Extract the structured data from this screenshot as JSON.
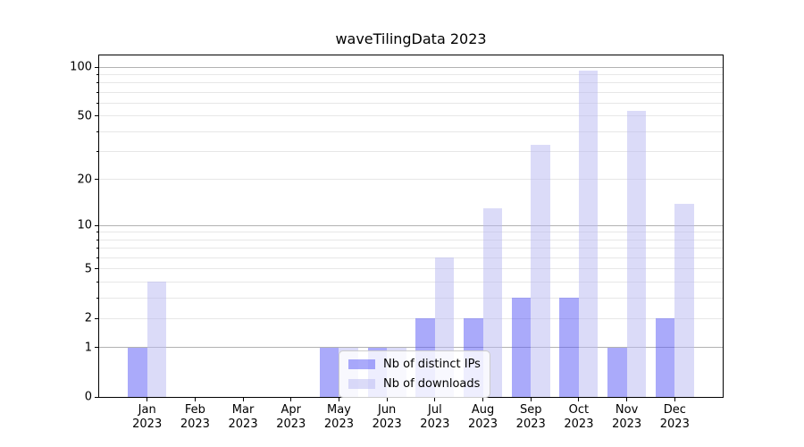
{
  "chart_data": {
    "type": "bar",
    "title": "waveTilingData 2023",
    "categories": [
      "Jan",
      "Feb",
      "Mar",
      "Apr",
      "May",
      "Jun",
      "Jul",
      "Aug",
      "Sep",
      "Oct",
      "Nov",
      "Dec"
    ],
    "category_year": "2023",
    "series": [
      {
        "name": "Nb of distinct IPs",
        "color": "rgba(85,85,245,0.5)",
        "values": [
          1,
          0,
          0,
          0,
          1,
          1,
          2,
          2,
          3,
          3,
          1,
          2
        ]
      },
      {
        "name": "Nb of downloads",
        "color": "rgba(183,183,241,0.5)",
        "values": [
          4,
          0,
          0,
          0,
          1,
          1,
          6,
          13,
          33,
          95,
          54,
          14
        ]
      }
    ],
    "yscale": "log1p",
    "ylim": [
      0,
      118
    ],
    "ytick_values": [
      0,
      1,
      2,
      5,
      10,
      20,
      50,
      100
    ],
    "ytick_labels": [
      "0",
      "1",
      "2",
      "5",
      "10",
      "20",
      "50",
      "100"
    ],
    "ymajor_gridlines": [
      1,
      10,
      100
    ],
    "yminor_gridlines": [
      2,
      3,
      4,
      5,
      6,
      7,
      8,
      9,
      20,
      30,
      40,
      50,
      60,
      70,
      80,
      90
    ],
    "grid": true,
    "legend_position": "lower center",
    "colors": {
      "major_grid": "#b2b2b2",
      "minor_grid": "#e7e7e7",
      "spine": "#000000",
      "text": "#000000",
      "background": "#ffffff"
    }
  }
}
